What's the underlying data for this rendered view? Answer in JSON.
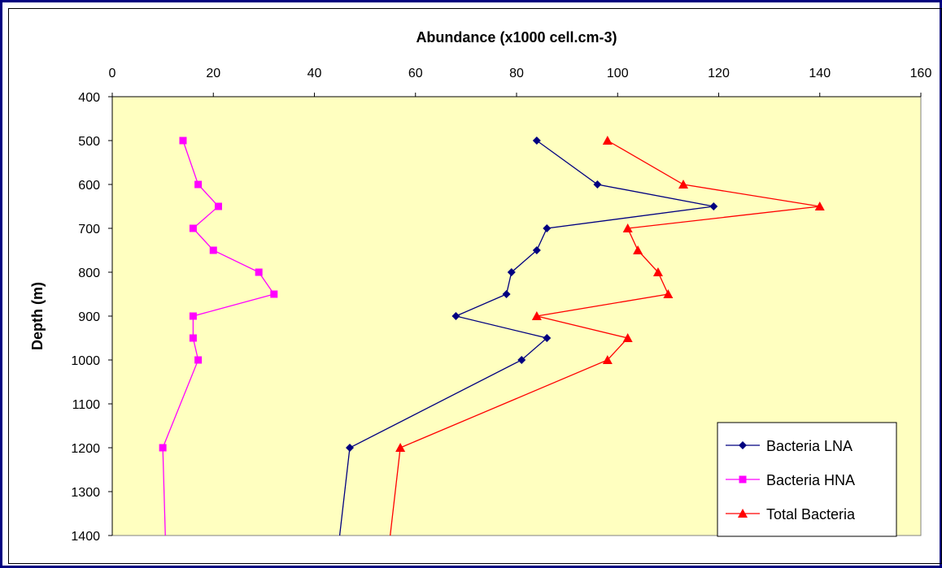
{
  "chart_data": {
    "type": "line",
    "xlabel": "Abundance (x1000 cell.cm-3)",
    "ylabel": "Depth (m)",
    "xlim": [
      0,
      160
    ],
    "ylim": [
      400,
      1400
    ],
    "x_ticks": [
      "0",
      "20",
      "40",
      "60",
      "80",
      "100",
      "120",
      "140",
      "160"
    ],
    "y_ticks": [
      "400",
      "500",
      "600",
      "700",
      "800",
      "900",
      "1000",
      "1100",
      "1200",
      "1300",
      "1400"
    ],
    "y_inverted": true,
    "x_axis_position": "top",
    "grid": false,
    "plot_background": "#ffffc0",
    "legend_position": "bottom-right",
    "series": [
      {
        "name": "Bacteria LNA",
        "color": "#000080",
        "marker": "diamond",
        "points": [
          [
            84,
            500
          ],
          [
            96,
            600
          ],
          [
            119,
            650
          ],
          [
            86,
            700
          ],
          [
            84,
            750
          ],
          [
            79,
            800
          ],
          [
            78,
            850
          ],
          [
            68,
            900
          ],
          [
            86,
            950
          ],
          [
            81,
            1000
          ],
          [
            47,
            1200
          ],
          [
            45,
            1400
          ]
        ]
      },
      {
        "name": "Bacteria HNA",
        "color": "#ff00ff",
        "marker": "square",
        "points": [
          [
            14,
            500
          ],
          [
            17,
            600
          ],
          [
            21,
            650
          ],
          [
            16,
            700
          ],
          [
            20,
            750
          ],
          [
            29,
            800
          ],
          [
            32,
            850
          ],
          [
            16,
            900
          ],
          [
            16,
            950
          ],
          [
            17,
            1000
          ],
          [
            10,
            1200
          ],
          [
            10.5,
            1400
          ]
        ]
      },
      {
        "name": "Total Bacteria",
        "color": "#ff0000",
        "marker": "triangle",
        "points": [
          [
            98,
            500
          ],
          [
            113,
            600
          ],
          [
            140,
            650
          ],
          [
            102,
            700
          ],
          [
            104,
            750
          ],
          [
            108,
            800
          ],
          [
            110,
            850
          ],
          [
            84,
            900
          ],
          [
            102,
            950
          ],
          [
            98,
            1000
          ],
          [
            57,
            1200
          ],
          [
            55,
            1400
          ]
        ]
      }
    ]
  }
}
